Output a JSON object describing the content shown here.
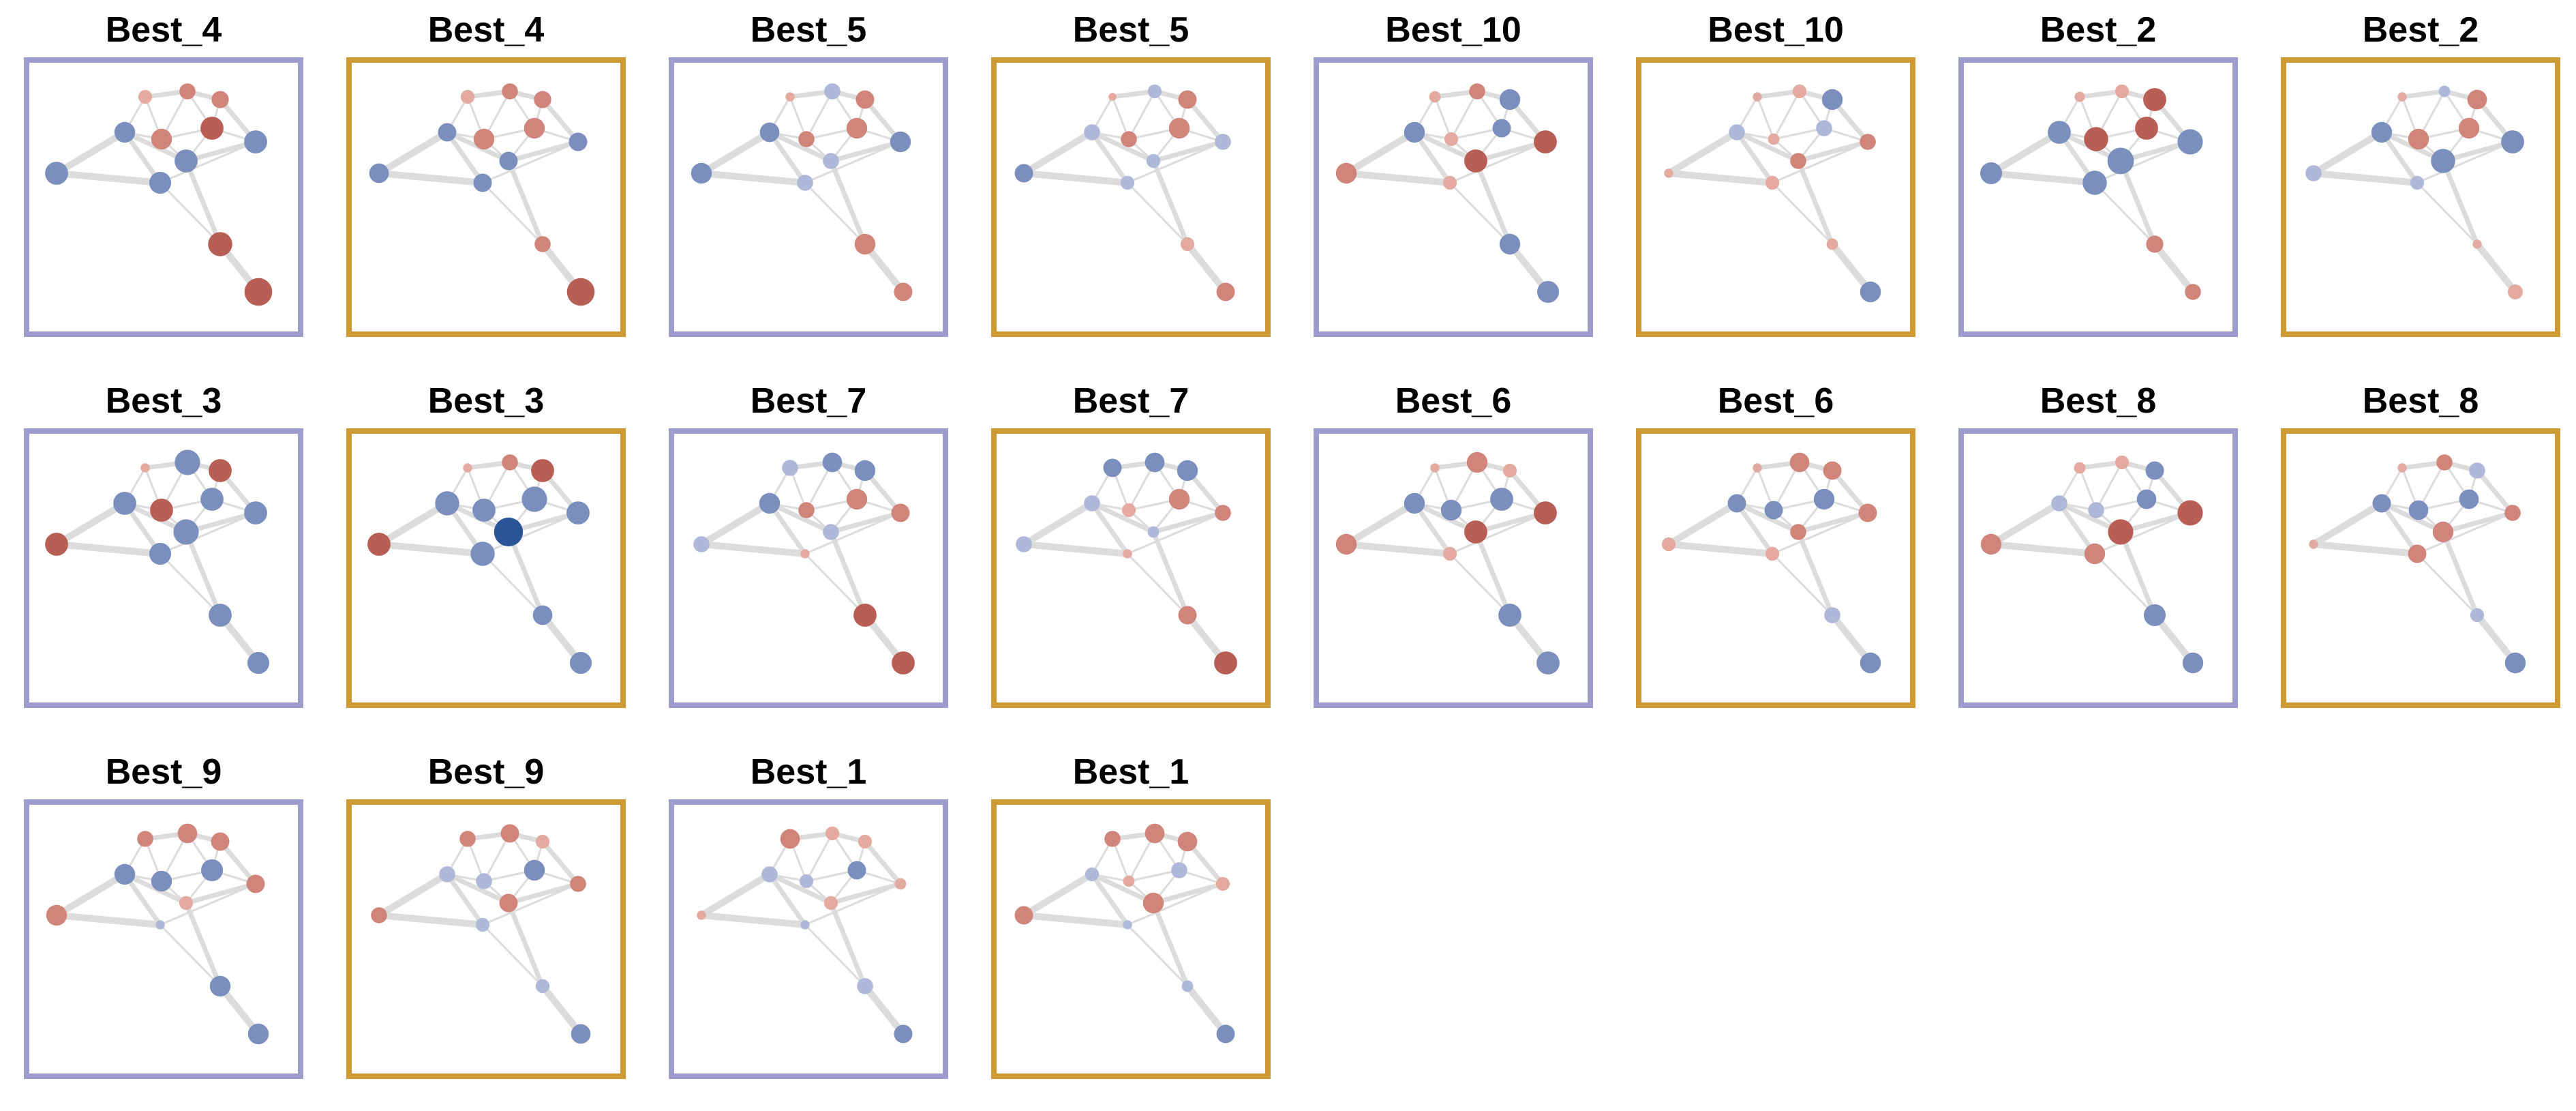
{
  "frame_colors": {
    "purple": "#9c9cce",
    "gold": "#cf9a34"
  },
  "node_color_scale": {
    "negative_strong": "#2b5397",
    "negative_mid": "#7b8fbe",
    "negative_light": "#aeb8d8",
    "positive_light": "#e4aaa0",
    "positive_mid": "#d1857a",
    "positive_strong": "#b85e55"
  },
  "panels": [
    {
      "title": "Best_4",
      "frame": "purple",
      "nodes": [
        0.3,
        0.4,
        0.45,
        0.6,
        -0.6,
        0.7,
        -0.7,
        -0.7,
        -0.65,
        -0.7,
        0.75,
        0.9
      ]
    },
    {
      "title": "Best_4",
      "frame": "gold",
      "nodes": [
        0.3,
        0.4,
        0.45,
        0.6,
        -0.5,
        0.6,
        -0.5,
        -0.5,
        -0.5,
        -0.55,
        0.4,
        0.9
      ]
    },
    {
      "title": "Best_5",
      "frame": "purple",
      "nodes": [
        0.1,
        -0.4,
        0.5,
        0.4,
        -0.55,
        0.6,
        -0.6,
        -0.4,
        -0.4,
        -0.6,
        0.6,
        0.5
      ]
    },
    {
      "title": "Best_5",
      "frame": "gold",
      "nodes": [
        0.05,
        -0.3,
        0.5,
        0.4,
        -0.4,
        0.6,
        -0.4,
        -0.3,
        -0.3,
        -0.5,
        0.3,
        0.5
      ]
    },
    {
      "title": "Best_10",
      "frame": "purple",
      "nodes": [
        0.2,
        0.4,
        -0.6,
        0.3,
        -0.6,
        -0.5,
        0.7,
        0.7,
        0.3,
        0.6,
        -0.6,
        -0.65
      ]
    },
    {
      "title": "Best_10",
      "frame": "gold",
      "nodes": [
        0.1,
        0.3,
        -0.6,
        0.2,
        -0.4,
        -0.4,
        0.4,
        0.4,
        0.3,
        0.1,
        0.2,
        -0.6
      ]
    },
    {
      "title": "Best_2",
      "frame": "purple",
      "nodes": [
        0.15,
        0.3,
        0.7,
        0.75,
        -0.7,
        0.7,
        -0.8,
        -0.85,
        -0.75,
        -0.65,
        0.45,
        0.4
      ]
    },
    {
      "title": "Best_2",
      "frame": "gold",
      "nodes": [
        0.1,
        -0.2,
        0.55,
        0.6,
        -0.6,
        0.6,
        -0.7,
        -0.75,
        -0.3,
        -0.4,
        0.1,
        0.35
      ]
    },
    {
      "title": "Best_3",
      "frame": "purple",
      "nodes": [
        0.1,
        -0.8,
        0.7,
        0.7,
        -0.7,
        -0.7,
        -0.7,
        -0.8,
        -0.65,
        0.7,
        -0.7,
        -0.65
      ]
    },
    {
      "title": "Best_3",
      "frame": "gold",
      "nodes": [
        0.1,
        0.4,
        0.7,
        -0.7,
        -0.75,
        -0.8,
        -0.7,
        -0.95,
        -0.75,
        0.7,
        -0.55,
        -0.65
      ]
    },
    {
      "title": "Best_7",
      "frame": "purple",
      "nodes": [
        -0.4,
        -0.55,
        -0.6,
        0.4,
        -0.6,
        0.6,
        0.5,
        -0.4,
        0.1,
        -0.4,
        0.7,
        0.7
      ]
    },
    {
      "title": "Best_7",
      "frame": "gold",
      "nodes": [
        -0.5,
        -0.55,
        -0.6,
        0.3,
        -0.4,
        0.6,
        0.4,
        -0.2,
        0.1,
        -0.4,
        0.5,
        0.7
      ]
    },
    {
      "title": "Best_6",
      "frame": "purple",
      "nodes": [
        0.1,
        0.6,
        0.3,
        -0.6,
        -0.6,
        -0.7,
        0.7,
        0.7,
        0.3,
        0.6,
        -0.7,
        -0.7
      ]
    },
    {
      "title": "Best_6",
      "frame": "gold",
      "nodes": [
        0.1,
        0.55,
        0.5,
        -0.5,
        -0.5,
        -0.6,
        0.5,
        0.4,
        0.3,
        0.3,
        -0.4,
        -0.6
      ]
    },
    {
      "title": "Best_8",
      "frame": "purple",
      "nodes": [
        0.2,
        0.3,
        -0.5,
        -0.4,
        -0.4,
        -0.55,
        0.8,
        0.8,
        0.6,
        0.6,
        -0.65,
        -0.6
      ]
    },
    {
      "title": "Best_8",
      "frame": "gold",
      "nodes": [
        0.1,
        0.4,
        -0.4,
        -0.55,
        -0.5,
        -0.55,
        0.4,
        0.6,
        0.5,
        0.1,
        -0.3,
        -0.6
      ]
    },
    {
      "title": "Best_9",
      "frame": "purple",
      "nodes": [
        0.4,
        0.55,
        0.5,
        -0.6,
        -0.6,
        -0.65,
        0.5,
        0.3,
        -0.1,
        0.6,
        -0.6,
        -0.6
      ]
    },
    {
      "title": "Best_9",
      "frame": "gold",
      "nodes": [
        0.4,
        0.5,
        0.3,
        -0.4,
        -0.4,
        -0.6,
        0.4,
        0.5,
        -0.3,
        0.4,
        -0.3,
        -0.55
      ]
    },
    {
      "title": "Best_1",
      "frame": "purple",
      "nodes": [
        0.55,
        0.3,
        0.3,
        -0.3,
        -0.4,
        -0.5,
        0.2,
        0.3,
        -0.1,
        0.1,
        -0.4,
        -0.5
      ]
    },
    {
      "title": "Best_1",
      "frame": "gold",
      "nodes": [
        0.4,
        0.55,
        0.55,
        0.2,
        -0.3,
        -0.4,
        0.3,
        0.6,
        -0.1,
        0.5,
        -0.2,
        -0.5
      ]
    }
  ]
}
